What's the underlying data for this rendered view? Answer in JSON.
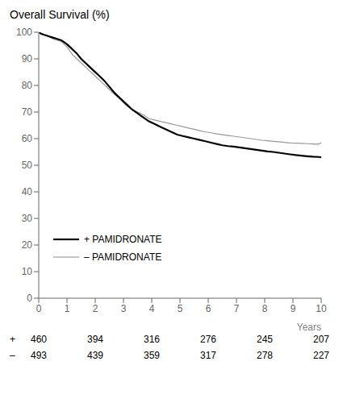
{
  "chart_data": {
    "type": "line",
    "title": "Overall Survival (%)",
    "xlabel": "Years",
    "x": [
      0,
      0.08,
      0.2,
      0.35,
      0.5,
      0.65,
      0.8,
      1.0,
      1.1,
      1.2,
      1.35,
      1.5,
      1.65,
      1.8,
      1.95,
      2.1,
      2.3,
      2.5,
      2.7,
      2.9,
      3.1,
      3.3,
      3.5,
      3.7,
      3.9,
      4.1,
      4.3,
      4.5,
      4.7,
      4.9,
      5.1,
      5.3,
      5.5,
      5.7,
      5.9,
      6.1,
      6.3,
      6.5,
      6.7,
      6.9,
      7.1,
      7.3,
      7.5,
      7.7,
      7.9,
      8.1,
      8.3,
      8.5,
      8.7,
      8.9,
      9.1,
      9.3,
      9.5,
      9.7,
      9.9,
      10.0
    ],
    "series": [
      {
        "name": "+  PAMIDRONATE",
        "color": "#000000",
        "values": [
          100,
          99.5,
          99,
          98.5,
          98,
          97.5,
          97,
          95.5,
          94.5,
          93.5,
          92,
          90,
          88.5,
          87,
          85.5,
          84,
          82,
          79.5,
          77,
          75,
          73,
          71,
          69.5,
          68,
          66.5,
          65.5,
          64.5,
          63.5,
          62.5,
          61.5,
          61,
          60.5,
          60,
          59.5,
          59,
          58.5,
          58,
          57.5,
          57.2,
          57,
          56.7,
          56.4,
          56.1,
          55.8,
          55.5,
          55.2,
          55,
          54.7,
          54.4,
          54.1,
          53.8,
          53.6,
          53.4,
          53.2,
          53.1,
          53.0
        ]
      },
      {
        "name": "–  PAMIDRONATE",
        "color": "#999999",
        "values": [
          100,
          99.5,
          99,
          98.5,
          97.5,
          97,
          96.5,
          94.5,
          93,
          91.5,
          90,
          88.5,
          87,
          85.5,
          84,
          82.5,
          80.5,
          78.5,
          76.5,
          74.5,
          72.5,
          71,
          70,
          69,
          67.5,
          67,
          66.5,
          66,
          65.5,
          65,
          64.5,
          64,
          63.5,
          63,
          62.5,
          62.2,
          61.8,
          61.5,
          61.2,
          60.9,
          60.6,
          60.3,
          60,
          59.7,
          59.4,
          59.2,
          59.0,
          58.8,
          58.6,
          58.4,
          58.3,
          58.2,
          58.1,
          58.0,
          57.9,
          58.5
        ]
      }
    ],
    "xlim": [
      0,
      10
    ],
    "ylim": [
      0,
      100
    ],
    "xticks": [
      0,
      1,
      2,
      3,
      4,
      5,
      6,
      7,
      8,
      9,
      10
    ],
    "yticks": [
      0,
      10,
      20,
      30,
      40,
      50,
      60,
      70,
      80,
      90,
      100
    ],
    "grid": false,
    "legend": "lower left",
    "risk_table": {
      "x": [
        0,
        2,
        4,
        6,
        8,
        10
      ],
      "rows": [
        {
          "label": "+",
          "values": [
            460,
            394,
            316,
            276,
            245,
            207
          ]
        },
        {
          "label": "–",
          "values": [
            493,
            439,
            359,
            317,
            278,
            227
          ]
        }
      ]
    }
  }
}
